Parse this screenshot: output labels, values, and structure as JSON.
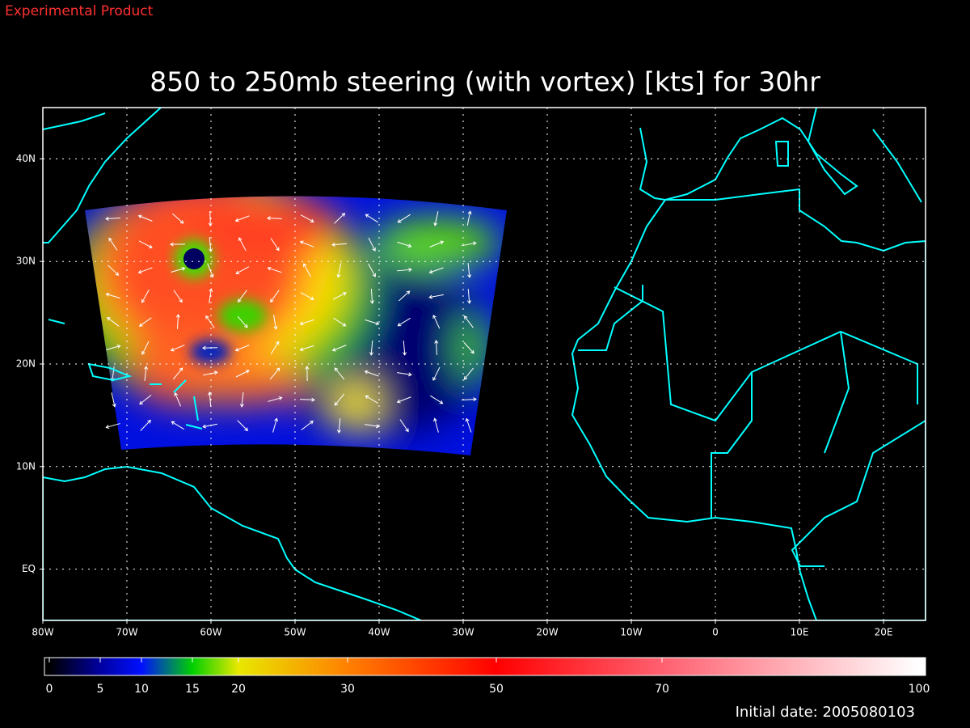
{
  "header": "Experimental Product",
  "map": {
    "title": "850 to 250mb steering (with vortex) [kts] for 30hr",
    "xlim": [
      -80,
      25
    ],
    "ylim": [
      -5,
      45
    ],
    "grid": true,
    "xticks": [
      {
        "value": -80,
        "label": "80W"
      },
      {
        "value": -70,
        "label": "70W"
      },
      {
        "value": -60,
        "label": "60W"
      },
      {
        "value": -50,
        "label": "50W"
      },
      {
        "value": -40,
        "label": "40W"
      },
      {
        "value": -30,
        "label": "30W"
      },
      {
        "value": -20,
        "label": "20W"
      },
      {
        "value": -10,
        "label": "10W"
      },
      0,
      {
        "value": 10,
        "label": "10E"
      },
      {
        "value": 20,
        "label": "20E"
      }
    ],
    "yticks": [
      {
        "value": 0,
        "label": "EQ"
      },
      {
        "value": 10,
        "label": "10N"
      },
      {
        "value": 20,
        "label": "20N"
      },
      {
        "value": 30,
        "label": "30N"
      },
      {
        "value": 40,
        "label": "40N"
      }
    ]
  },
  "colorbar": {
    "range": [
      0,
      100
    ],
    "ticks": [
      0,
      5,
      10,
      15,
      20,
      30,
      50,
      70,
      100
    ],
    "colors": [
      "#000000",
      "#0000a0",
      "#0010ff",
      "#00d000",
      "#e8e800",
      "#ff8000",
      "#ff0000",
      "#ff6070",
      "#ffffff"
    ]
  },
  "footer": "Initial date: 2005080103"
}
